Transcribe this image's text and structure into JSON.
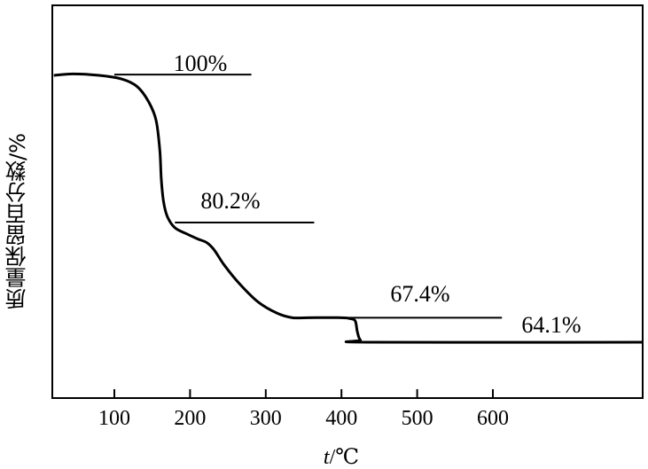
{
  "chart_data": {
    "type": "line",
    "xlabel_italic": "t",
    "xlabel_unit": "/℃",
    "ylabel": "质量保留百分数/%",
    "xlim": [
      20,
      800
    ],
    "ylim": [
      56,
      110
    ],
    "x_ticks": [
      100,
      200,
      300,
      400,
      500,
      600
    ],
    "grid": false,
    "series": [
      {
        "x": [
          20,
          45,
          80,
          110,
          130,
          145,
          155,
          160,
          162,
          165,
          170,
          180,
          195,
          210,
          222,
          232,
          245,
          265,
          290,
          315,
          335,
          355,
          400,
          410,
          418,
          421,
          425,
          436,
          800
        ],
        "y": [
          100,
          100.2,
          100,
          99.5,
          98.5,
          96.5,
          94,
          90,
          86,
          83,
          81,
          79.5,
          78.7,
          78,
          77.5,
          76.5,
          74.5,
          72,
          69.5,
          68,
          67.4,
          67.4,
          67.4,
          67.3,
          67,
          65.5,
          64.4,
          64.1,
          64.1
        ]
      }
    ],
    "annotations": [
      {
        "text": "100%",
        "y": 100.1,
        "line_x": [
          100,
          281
        ]
      },
      {
        "text": "80.2%",
        "y": 80.2,
        "line_x": [
          180,
          364
        ]
      },
      {
        "text": "67.4%",
        "y": 67.4,
        "line_x": [
          400,
          612
        ]
      },
      {
        "text": "64.1%",
        "y": 64.1,
        "line_x": [
          440,
          800
        ]
      }
    ]
  }
}
